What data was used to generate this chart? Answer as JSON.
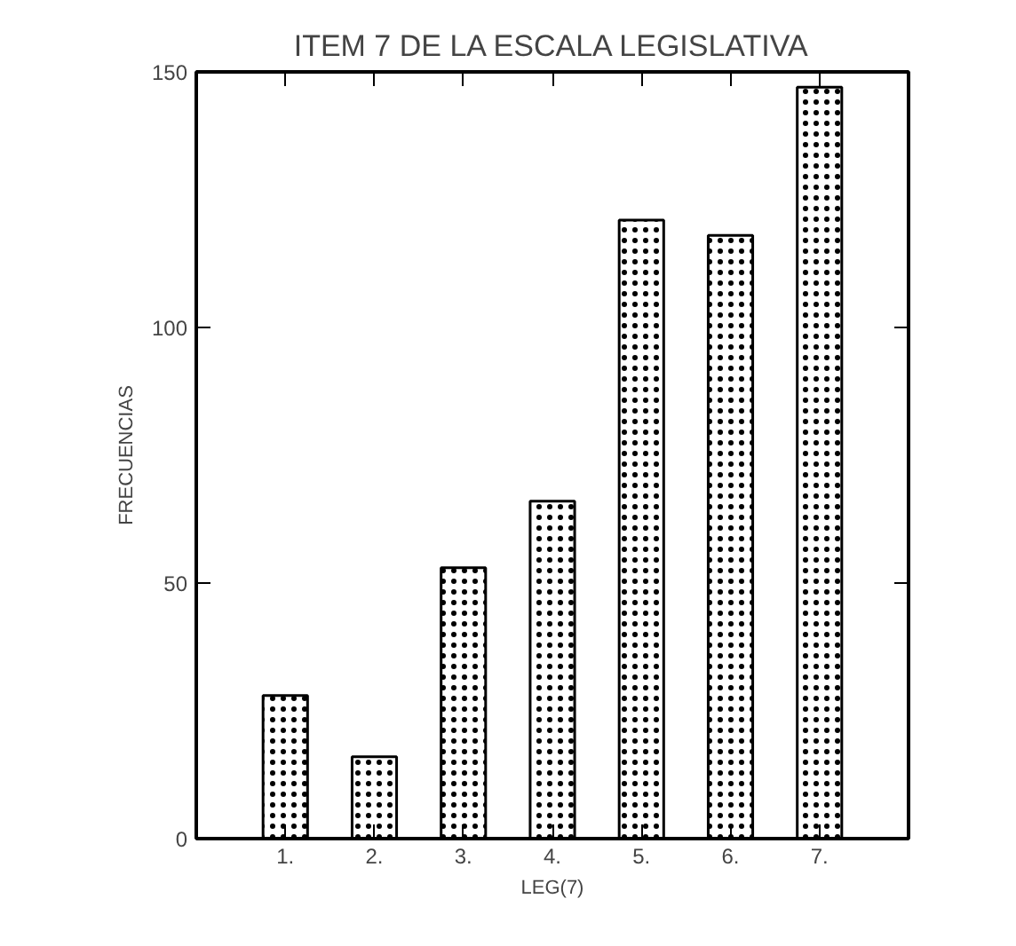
{
  "chart_data": {
    "type": "bar",
    "title": "ITEM 7 DE LA ESCALA LEGISLATIVA",
    "xlabel": "LEG(7)",
    "ylabel": "FRECUENCIAS",
    "categories": [
      "1.",
      "2.",
      "3.",
      "4.",
      "5.",
      "6.",
      "7."
    ],
    "values": [
      28,
      16,
      53,
      66,
      121,
      118,
      147
    ],
    "color": "#ffffff",
    "ylim": [
      0,
      150
    ],
    "yticks": [
      0,
      50,
      100,
      150
    ],
    "grid": false
  }
}
